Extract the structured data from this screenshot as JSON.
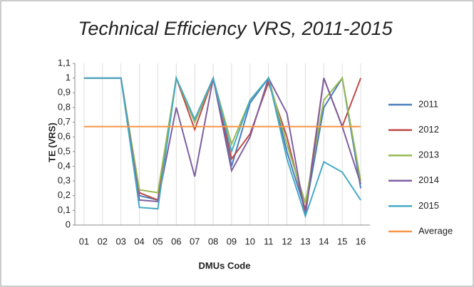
{
  "chart_data": {
    "type": "line",
    "title": "Technical Efficiency VRS, 2011-2015",
    "x_label": "DMUs Code",
    "y_label": "TE (VRS)",
    "categories": [
      "01",
      "02",
      "03",
      "04",
      "05",
      "06",
      "07",
      "08",
      "09",
      "10",
      "11",
      "12",
      "13",
      "14",
      "15",
      "16"
    ],
    "series": [
      {
        "name": "2011",
        "color": "#4a7ebb",
        "values": [
          1,
          1,
          1,
          0.2,
          0.17,
          1,
          0.7,
          1,
          0.4,
          0.83,
          1,
          0.5,
          0.1,
          0.8,
          1,
          0.25
        ]
      },
      {
        "name": "2012",
        "color": "#be4b48",
        "values": [
          1,
          1,
          1,
          0.22,
          0.17,
          1,
          0.65,
          1,
          0.45,
          0.62,
          0.97,
          0.6,
          0.1,
          1,
          0.67,
          1
        ]
      },
      {
        "name": "2013",
        "color": "#98b954",
        "values": [
          1,
          1,
          1,
          0.24,
          0.22,
          1,
          0.7,
          1,
          0.55,
          0.85,
          1,
          0.55,
          0.15,
          0.85,
          1,
          0.3
        ]
      },
      {
        "name": "2014",
        "color": "#7d60a0",
        "values": [
          1,
          1,
          1,
          0.17,
          0.16,
          0.8,
          0.33,
          1,
          0.37,
          0.6,
          1,
          0.76,
          0.06,
          1,
          0.67,
          0.28
        ]
      },
      {
        "name": "2015",
        "color": "#46aac5",
        "values": [
          1,
          1,
          1,
          0.12,
          0.11,
          1,
          0.72,
          1,
          0.5,
          0.85,
          1,
          0.45,
          0.06,
          0.43,
          0.36,
          0.17
        ]
      },
      {
        "name": "Average",
        "color": "#f79646",
        "values": [
          0.67,
          0.67,
          0.67,
          0.67,
          0.67,
          0.67,
          0.67,
          0.67,
          0.67,
          0.67,
          0.67,
          0.67,
          0.67,
          0.67,
          0.67,
          0.67
        ]
      }
    ],
    "ylim": [
      0,
      1.1
    ],
    "yticks": [
      0,
      {
        "value": 0.1,
        "label": "0,1"
      },
      {
        "value": 0.2,
        "label": "0,2"
      },
      {
        "value": 0.3,
        "label": "0,3"
      },
      {
        "value": 0.4,
        "label": "0,4"
      },
      {
        "value": 0.5,
        "label": "0,5"
      },
      {
        "value": 0.6,
        "label": "0,6"
      },
      {
        "value": 0.7,
        "label": "0,7"
      },
      {
        "value": 0.8,
        "label": "0,8"
      },
      {
        "value": 0.9,
        "label": "0,9"
      },
      1,
      {
        "value": 1.1,
        "label": "1,1"
      }
    ],
    "grid": "x",
    "legend": "right"
  }
}
